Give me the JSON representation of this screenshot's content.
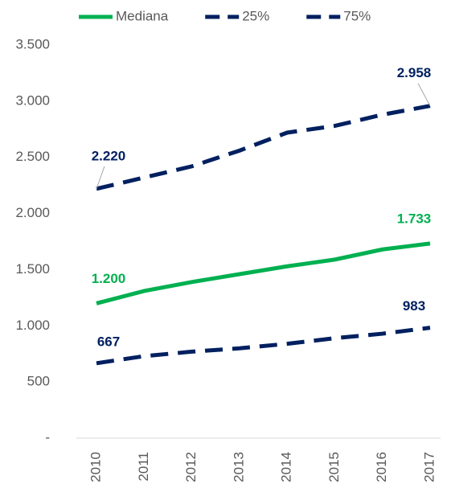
{
  "chart_data": {
    "type": "line",
    "categories": [
      "2010",
      "2011",
      "2012",
      "2013",
      "2014",
      "2015",
      "2016",
      "2017"
    ],
    "series": [
      {
        "name": "Mediana",
        "color": "#00b050",
        "dash": false,
        "values": [
          1200,
          1310,
          1390,
          1460,
          1530,
          1590,
          1680,
          1733
        ],
        "value_labels": [
          "1.200",
          null,
          null,
          null,
          null,
          null,
          null,
          "1.733"
        ]
      },
      {
        "name": "25%",
        "color": "#002060",
        "dash": true,
        "values": [
          667,
          730,
          770,
          800,
          840,
          890,
          930,
          983
        ],
        "value_labels": [
          "667",
          null,
          null,
          null,
          null,
          null,
          null,
          "983"
        ]
      },
      {
        "name": "75%",
        "color": "#002060",
        "dash": true,
        "values": [
          2220,
          2320,
          2420,
          2560,
          2720,
          2780,
          2880,
          2958
        ],
        "value_labels": [
          "2.220",
          null,
          null,
          null,
          null,
          null,
          null,
          "2.958"
        ]
      }
    ],
    "ylim": [
      0,
      3500
    ],
    "yticks": [
      {
        "value": 0,
        "label": "-"
      },
      500,
      {
        "value": 1000,
        "label": "1.000"
      },
      {
        "value": 1500,
        "label": "1.500"
      },
      {
        "value": 2000,
        "label": "2.000"
      },
      {
        "value": 2500,
        "label": "2.500"
      },
      {
        "value": 3000,
        "label": "3.000"
      },
      {
        "value": 3500,
        "label": "3.500"
      }
    ],
    "grid": false
  }
}
